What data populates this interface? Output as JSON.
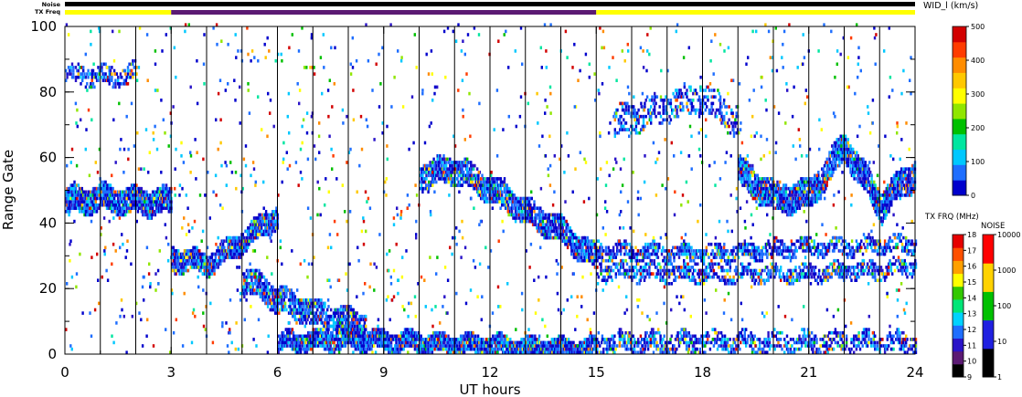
{
  "chart_data": {
    "type": "heatmap",
    "header": {
      "noise_label": "Noise",
      "txfreq_label": "TX Freq",
      "txfreq_segments": [
        {
          "from": 0,
          "to": 3,
          "color": "#ffff00"
        },
        {
          "from": 3,
          "to": 15,
          "color": "#5b1a73"
        },
        {
          "from": 15,
          "to": 24,
          "color": "#ffff00"
        }
      ],
      "noise_bar_color": "#000000"
    },
    "xlabel": "UT hours",
    "ylabel": "Range Gate",
    "xlim": [
      0,
      24
    ],
    "ylim": [
      0,
      100
    ],
    "xticks": [
      "0",
      "3",
      "6",
      "9",
      "12",
      "15",
      "18",
      "21",
      "24"
    ],
    "yticks": [
      "0",
      "20",
      "40",
      "60",
      "80",
      "100"
    ],
    "scan_lines_every_hours": 1,
    "grid": false,
    "echo_bands": [
      {
        "t": [
          0,
          1,
          2,
          3
        ],
        "gate": [
          46,
          47,
          46,
          46
        ],
        "width": 6,
        "density": 0.9
      },
      {
        "t": [
          3,
          4,
          5,
          6
        ],
        "gate": [
          29,
          27,
          34,
          42
        ],
        "width": 5,
        "density": 0.85
      },
      {
        "t": [
          5,
          5.5,
          6,
          7,
          8.5
        ],
        "gate": [
          22,
          20,
          16,
          12,
          8
        ],
        "width": 6,
        "density": 0.7
      },
      {
        "t": [
          6,
          8,
          10,
          12,
          14,
          15
        ],
        "gate": [
          3,
          4,
          3,
          2,
          1,
          1
        ],
        "width": 4,
        "density": 0.9
      },
      {
        "t": [
          10,
          11,
          12,
          13,
          14,
          15
        ],
        "gate": [
          54,
          56,
          50,
          43,
          37,
          28
        ],
        "width": 6,
        "density": 0.75
      },
      {
        "t": [
          19,
          20,
          21,
          22,
          23,
          24
        ],
        "gate": [
          55,
          47,
          48,
          63,
          45,
          55
        ],
        "width": 7,
        "density": 0.8
      },
      {
        "t": [
          15,
          18,
          21,
          24
        ],
        "gate": [
          31,
          30,
          32,
          33
        ],
        "width": 3,
        "density": 0.55
      },
      {
        "t": [
          15,
          18,
          21,
          24
        ],
        "gate": [
          25,
          24,
          24,
          26
        ],
        "width": 3,
        "density": 0.5
      },
      {
        "t": [
          15,
          24
        ],
        "gate": [
          3,
          3
        ],
        "width": 4,
        "density": 0.45
      },
      {
        "t": [
          0,
          1,
          2
        ],
        "gate": [
          85,
          84,
          85
        ],
        "width": 4,
        "density": 0.4
      },
      {
        "t": [
          15.5,
          17,
          18,
          19
        ],
        "gate": [
          70,
          75,
          78,
          70
        ],
        "width": 7,
        "density": 0.35
      }
    ],
    "colorbar_width": {
      "title": "WID_l (km/s)",
      "ticks": [
        "0",
        "100",
        "200",
        "300",
        "400",
        "500"
      ],
      "colors": [
        "#0000cc",
        "#1e6eff",
        "#00c8ff",
        "#00e6a0",
        "#00c000",
        "#90e600",
        "#ffff00",
        "#ffc800",
        "#ff8c00",
        "#ff3c00",
        "#d20000"
      ]
    },
    "colorbar_txfreq": {
      "title": "TX FRQ (MHz)",
      "ticks": [
        "9",
        "10",
        "11",
        "12",
        "13",
        "14",
        "15",
        "16",
        "17",
        "18"
      ],
      "colors": [
        "#000000",
        "#5b1a73",
        "#2a14c8",
        "#1e6eff",
        "#00d2ff",
        "#00e678",
        "#32c800",
        "#ffff00",
        "#ffa000",
        "#ff5000",
        "#e60000"
      ]
    },
    "colorbar_noise": {
      "title": "NOISE",
      "ticks": [
        "1",
        "10",
        "100",
        "1000",
        "10000"
      ],
      "colors": [
        "#000000",
        "#2020e0",
        "#00c000",
        "#ffd200",
        "#ff0000"
      ]
    }
  }
}
